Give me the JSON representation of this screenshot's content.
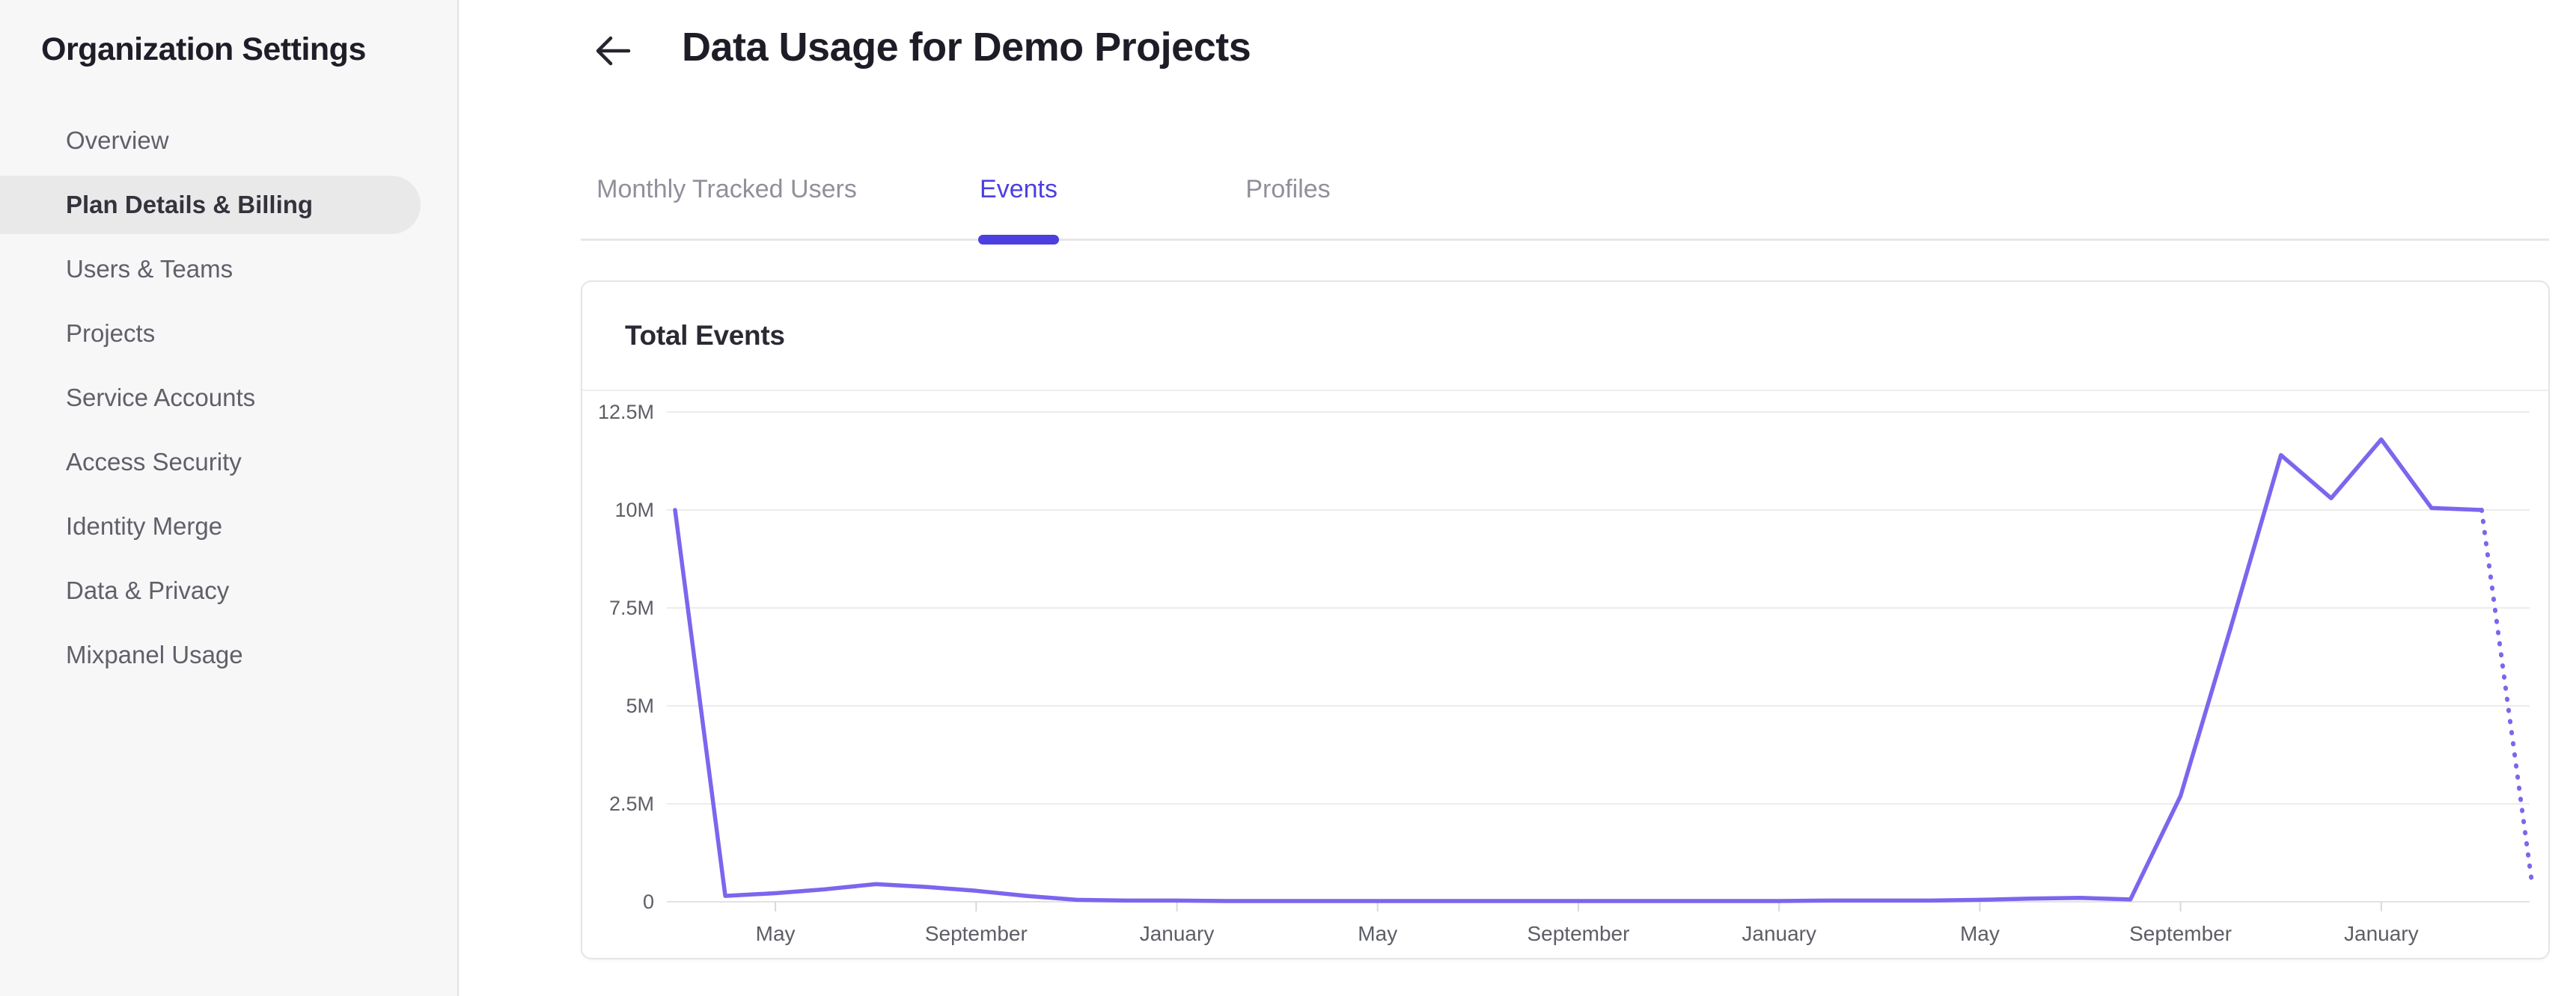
{
  "sidebar": {
    "title": "Organization Settings",
    "items": [
      {
        "label": "Overview",
        "active": false
      },
      {
        "label": "Plan Details & Billing",
        "active": true
      },
      {
        "label": "Users & Teams",
        "active": false
      },
      {
        "label": "Projects",
        "active": false
      },
      {
        "label": "Service Accounts",
        "active": false
      },
      {
        "label": "Access Security",
        "active": false
      },
      {
        "label": "Identity Merge",
        "active": false
      },
      {
        "label": "Data & Privacy",
        "active": false
      },
      {
        "label": "Mixpanel Usage",
        "active": false
      }
    ]
  },
  "header": {
    "back_icon": "left-arrow",
    "title": "Data Usage for Demo Projects"
  },
  "tabs": [
    {
      "label": "Monthly Tracked Users",
      "active": false
    },
    {
      "label": "Events",
      "active": true
    },
    {
      "label": "Profiles",
      "active": false
    }
  ],
  "card": {
    "title": "Total Events"
  },
  "colors": {
    "accent": "#4c3fe0",
    "chart_line": "#7b66ee",
    "sidebar_active_bg": "#e9e9e9",
    "gridline": "#ececee",
    "baseline": "#e2e2e5",
    "axis_label": "#5d5e66"
  },
  "chart_data": {
    "type": "line",
    "title": "Total Events",
    "xlabel": "",
    "ylabel": "",
    "grid": "horizontal",
    "legend": "none",
    "ylim_millions": [
      0,
      12.5
    ],
    "y_ticks_top_to_bottom": [
      "12.5M",
      "10M",
      "7.5M",
      "5M",
      "2.5M",
      "0"
    ],
    "x_unit": "month",
    "x_ticks": [
      {
        "label": "May",
        "month_index": 2
      },
      {
        "label": "September",
        "month_index": 6
      },
      {
        "label": "January",
        "month_index": 10
      },
      {
        "label": "May",
        "month_index": 14
      },
      {
        "label": "September",
        "month_index": 18
      },
      {
        "label": "January",
        "month_index": 22
      },
      {
        "label": "May",
        "month_index": 26
      },
      {
        "label": "September",
        "month_index": 30
      },
      {
        "label": "January",
        "month_index": 34
      }
    ],
    "series": [
      {
        "name": "Total Events",
        "style": "solid-with-dotted-projection",
        "projection_from_index": 36,
        "values_millions": [
          10.0,
          0.15,
          0.22,
          0.32,
          0.45,
          0.38,
          0.28,
          0.15,
          0.05,
          0.03,
          0.03,
          0.02,
          0.02,
          0.02,
          0.02,
          0.02,
          0.02,
          0.02,
          0.02,
          0.02,
          0.02,
          0.02,
          0.02,
          0.03,
          0.03,
          0.03,
          0.05,
          0.08,
          0.1,
          0.06,
          2.7,
          7.0,
          11.4,
          10.3,
          11.8,
          10.05,
          10.0,
          0.5
        ]
      }
    ]
  }
}
